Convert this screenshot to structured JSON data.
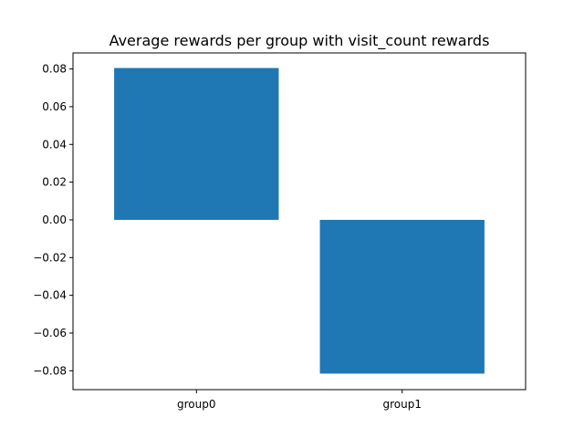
{
  "chart_data": {
    "type": "bar",
    "title": "Average rewards per group with visit_count rewards",
    "xlabel": "",
    "ylabel": "",
    "categories": [
      "group0",
      "group1"
    ],
    "values": [
      0.0805,
      -0.0815
    ],
    "ylim": [
      -0.09,
      0.0885
    ],
    "yticks": [
      0.08,
      0.06,
      0.04,
      0.02,
      0.0,
      -0.02,
      -0.04,
      -0.06,
      -0.08
    ],
    "ytick_labels": [
      "0.08",
      "0.06",
      "0.04",
      "0.02",
      "0.00",
      "−0.02",
      "−0.04",
      "−0.06",
      "−0.08"
    ],
    "bar_color": "#1f77b4",
    "grid": false,
    "legend": "none"
  }
}
